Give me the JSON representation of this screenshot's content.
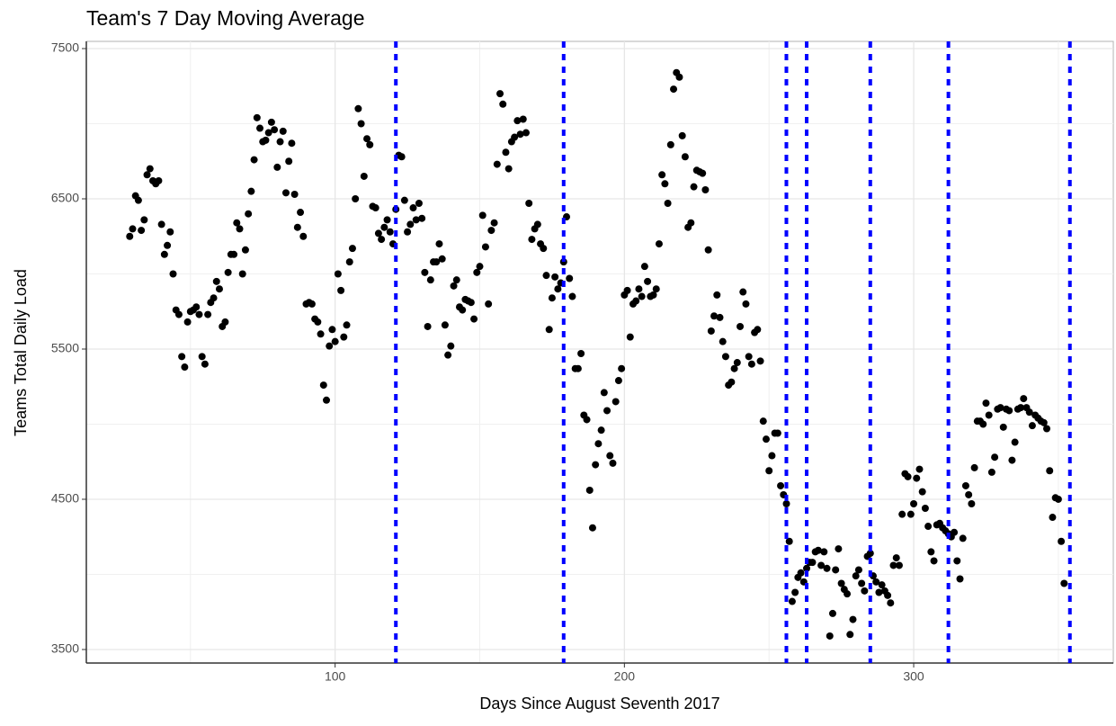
{
  "chart_data": {
    "type": "scatter",
    "title": "Team's 7 Day Moving Average",
    "xlabel": "Days Since August Seventh 2017",
    "ylabel": "Teams Total Daily Load",
    "xlim": [
      14,
      369
    ],
    "ylim": [
      3410,
      7548
    ],
    "xticks": [
      100,
      200,
      300
    ],
    "yticks": [
      3500,
      4500,
      5500,
      6500,
      7500
    ],
    "xminor": [
      50,
      150,
      250,
      350
    ],
    "yminor": [
      4000,
      5000,
      6000,
      7000
    ],
    "grid": true,
    "color": "#000000",
    "vline_color": "#0000ff",
    "vlines": [
      121,
      179,
      256,
      263,
      285,
      312,
      354
    ],
    "x": [
      29,
      30,
      31,
      32,
      33,
      34,
      35,
      36,
      37,
      38,
      39,
      40,
      41,
      42,
      43,
      44,
      45,
      46,
      47,
      48,
      49,
      50,
      51,
      52,
      53,
      54,
      55,
      56,
      57,
      58,
      59,
      60,
      61,
      62,
      63,
      64,
      65,
      66,
      67,
      68,
      69,
      70,
      71,
      72,
      73,
      74,
      75,
      76,
      77,
      78,
      79,
      80,
      81,
      82,
      83,
      84,
      85,
      86,
      87,
      88,
      89,
      90,
      91,
      92,
      93,
      94,
      95,
      96,
      97,
      98,
      99,
      100,
      101,
      102,
      103,
      104,
      105,
      106,
      107,
      108,
      109,
      110,
      111,
      112,
      113,
      114,
      115,
      116,
      117,
      118,
      119,
      120,
      121,
      122,
      123,
      124,
      125,
      126,
      127,
      128,
      129,
      130,
      131,
      132,
      133,
      134,
      135,
      136,
      137,
      138,
      139,
      140,
      141,
      142,
      143,
      144,
      145,
      146,
      147,
      148,
      149,
      150,
      151,
      152,
      153,
      154,
      155,
      156,
      157,
      158,
      159,
      160,
      161,
      162,
      163,
      164,
      165,
      166,
      167,
      168,
      169,
      170,
      171,
      172,
      173,
      174,
      175,
      176,
      177,
      178,
      179,
      180,
      181,
      182,
      183,
      184,
      185,
      186,
      187,
      188,
      189,
      190,
      191,
      192,
      193,
      194,
      195,
      196,
      197,
      198,
      199,
      200,
      201,
      202,
      203,
      204,
      205,
      206,
      207,
      208,
      209,
      210,
      211,
      212,
      213,
      214,
      215,
      216,
      217,
      218,
      219,
      220,
      221,
      222,
      223,
      224,
      225,
      226,
      227,
      228,
      229,
      230,
      231,
      232,
      233,
      234,
      235,
      236,
      237,
      238,
      239,
      240,
      241,
      242,
      243,
      244,
      245,
      246,
      247,
      248,
      249,
      250,
      251,
      252,
      253,
      254,
      255,
      256,
      257,
      258,
      259,
      260,
      261,
      262,
      263,
      264,
      265,
      266,
      267,
      268,
      269,
      270,
      271,
      272,
      273,
      274,
      275,
      276,
      277,
      278,
      279,
      280,
      281,
      282,
      283,
      284,
      285,
      286,
      287,
      288,
      289,
      290,
      291,
      292,
      293,
      294,
      295,
      296,
      297,
      298,
      299,
      300,
      301,
      302,
      303,
      304,
      305,
      306,
      307,
      308,
      309,
      310,
      311,
      312,
      313,
      314,
      315,
      316,
      317,
      318,
      319,
      320,
      321,
      322,
      323,
      324,
      325,
      326,
      327,
      328,
      329,
      330,
      331,
      332,
      333,
      334,
      335,
      336,
      337,
      338,
      339,
      340,
      341,
      342,
      343,
      344,
      345,
      346,
      347,
      348,
      349,
      350,
      351,
      352
    ],
    "values": [
      6250,
      6300,
      6520,
      6490,
      6290,
      6360,
      6660,
      6700,
      6620,
      6600,
      6620,
      6330,
      6130,
      6190,
      6280,
      6000,
      5760,
      5730,
      5450,
      5380,
      5680,
      5750,
      5760,
      5780,
      5730,
      5450,
      5400,
      5730,
      5810,
      5840,
      5950,
      5900,
      5650,
      5680,
      6010,
      6130,
      6130,
      6340,
      6300,
      6000,
      6160,
      6400,
      6550,
      6760,
      7040,
      6970,
      6880,
      6890,
      6940,
      7010,
      6960,
      6710,
      6880,
      6950,
      6540,
      6750,
      6870,
      6530,
      6310,
      6410,
      6250,
      5800,
      5810,
      5800,
      5700,
      5680,
      5600,
      5260,
      5160,
      5520,
      5630,
      5550,
      6000,
      5890,
      5580,
      5660,
      6080,
      6170,
      6500,
      7100,
      7000,
      6650,
      6900,
      6860,
      6450,
      6440,
      6270,
      6230,
      6310,
      6360,
      6280,
      6200,
      6430,
      6790,
      6780,
      6490,
      6280,
      6330,
      6440,
      6360,
      6470,
      6370,
      6010,
      5650,
      5960,
      6080,
      6080,
      6200,
      6100,
      5660,
      5460,
      5520,
      5920,
      5960,
      5780,
      5760,
      5830,
      5820,
      5810,
      5700,
      6010,
      6050,
      6390,
      6180,
      5800,
      6290,
      6340,
      6730,
      7200,
      7130,
      6810,
      6700,
      6880,
      6910,
      7020,
      6930,
      7030,
      6940,
      6470,
      6230,
      6300,
      6330,
      6200,
      6170,
      5990,
      5630,
      5840,
      5980,
      5900,
      5940,
      6080,
      6380,
      5970,
      5850,
      5370,
      5370,
      5470,
      5060,
      5030,
      4560,
      4310,
      4730,
      4870,
      4960,
      5210,
      5090,
      4790,
      4740,
      5150,
      5290,
      5370,
      5860,
      5890,
      5580,
      5800,
      5820,
      5900,
      5850,
      6050,
      5950,
      5850,
      5860,
      5900,
      6200,
      6660,
      6600,
      6470,
      6860,
      7230,
      7340,
      7310,
      6920,
      6780,
      6310,
      6340,
      6580,
      6690,
      6680,
      6670,
      6560,
      6160,
      5620,
      5720,
      5860,
      5710,
      5550,
      5450,
      5260,
      5280,
      5370,
      5410,
      5650,
      5880,
      5800,
      5450,
      5400,
      5610,
      5630,
      5420,
      5020,
      4900,
      4690,
      4790,
      4940,
      4940,
      4590,
      4530,
      4470,
      4220,
      3820,
      3880,
      3980,
      4010,
      3950,
      4040,
      4080,
      4080,
      4150,
      4160,
      4060,
      4150,
      4040,
      3590,
      3740,
      4030,
      4170,
      3940,
      3900,
      3870,
      3600,
      3700,
      3990,
      4030,
      3940,
      3890,
      4120,
      4140,
      3990,
      3950,
      3880,
      3930,
      3890,
      3860,
      3810,
      4060,
      4110,
      4060,
      4400,
      4670,
      4650,
      4400,
      4470,
      4640,
      4700,
      4550,
      4440,
      4320,
      4150,
      4090,
      4330,
      4340,
      4310,
      4290,
      4270,
      4250,
      4280,
      4090,
      3970,
      4240,
      4590,
      4530,
      4470,
      4710,
      5020,
      5020,
      5000,
      5140,
      5060,
      4680,
      4780,
      5100,
      5110,
      4980,
      5100,
      5090,
      4760,
      4880,
      5100,
      5110,
      5170,
      5110,
      5080,
      4990,
      5060,
      5040,
      5020,
      5010,
      4970,
      4690,
      4380,
      4510,
      4500,
      4220,
      3940
    ]
  }
}
